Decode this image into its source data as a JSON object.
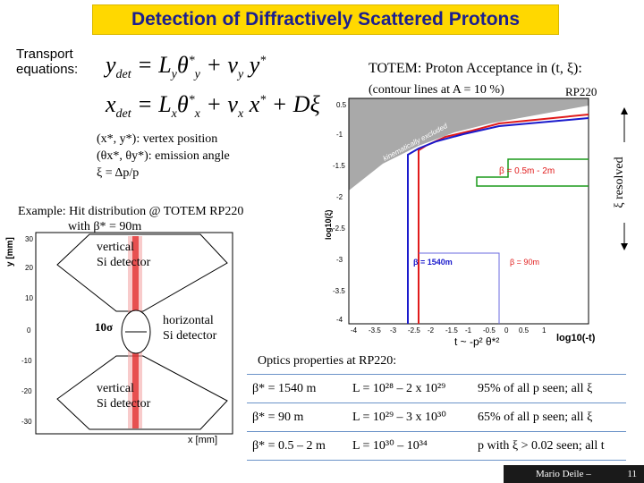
{
  "title": "Detection of Diffractively Scattered Protons",
  "transport": {
    "label_line1": "Transport",
    "label_line2": "equations:"
  },
  "equation1": "y_det = L_y θ_y* + v_y y*",
  "equation2": "x_det = L_x θ_x* + v_x x* + Dξ",
  "definitions": {
    "vertex": "(x*, y*):   vertex position",
    "angle": "(θx*, θy*): emission angle",
    "xi": "ξ = Δp/p"
  },
  "acceptance": {
    "title": "TOTEM: Proton Acceptance in (t, ξ):",
    "contour": "(contour lines at A = 10 %)",
    "rp": "RP220",
    "xi_resolved": "ξ resolved",
    "beta_band": "β = 0.5m - 2m",
    "beta_1540": "β = 1540m",
    "beta_90": "β = 90m",
    "kinematic": "kinematically excluded",
    "t_relation": "t ~ -p² θ*²",
    "x_axis": "log10(-t)",
    "y_axis": "log10(ξ)",
    "x_ticks": [
      "-4",
      "-3.5",
      "-3",
      "-2.5",
      "-2",
      "-1.5",
      "-1",
      "-0.5",
      "0",
      "0.5",
      "1"
    ],
    "y_ticks": [
      "0.5",
      "-1",
      "-1.5",
      "-2",
      "-2.5",
      "-3",
      "-3.5",
      "-4"
    ]
  },
  "hits": {
    "example_line1": "Example: Hit distribution @ TOTEM RP220",
    "example_line2": "with β* = 90m",
    "y_axis": "y [mm]",
    "x_axis": "x [mm]",
    "y_ticks": [
      "30",
      "20",
      "10",
      "0",
      "-10",
      "-20",
      "-30"
    ],
    "vertical_top_1": "vertical",
    "vertical_top_2": "Si detector",
    "horizontal_1": "horizontal",
    "horizontal_2": "Si detector",
    "sigma": "10σ",
    "vertical_bot_1": "vertical",
    "vertical_bot_2": "Si detector"
  },
  "optics": {
    "heading": "Optics properties at RP220:",
    "rows": [
      {
        "beta": "β* = 1540 m",
        "lum": "L = 10²⁸ – 2 x 10²⁹",
        "note": "95% of all p seen; all ξ"
      },
      {
        "beta": "β* = 90 m",
        "lum": "L = 10²⁹ – 3 x 10³⁰",
        "note": "65% of all p seen; all ξ"
      },
      {
        "beta": "β* = 0.5 – 2 m",
        "lum": "L = 10³⁰ – 10³⁴",
        "note": "p with ξ > 0.02 seen; all t"
      }
    ]
  },
  "footer": {
    "author": "Mario Deile –",
    "page": "11"
  },
  "colors": {
    "title_bg": "#ffd800",
    "title_text": "#1b1f8f",
    "beta1540": "#1a1acc",
    "beta90": "#e01b1b",
    "beta_band": "#1a9a1a"
  }
}
